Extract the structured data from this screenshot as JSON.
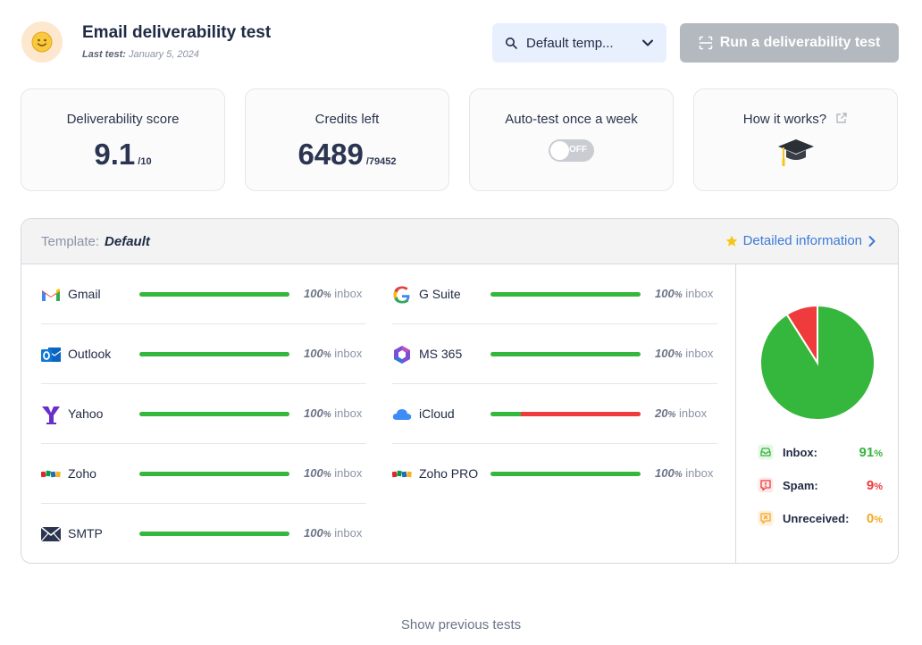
{
  "header": {
    "title": "Email deliverability test",
    "last_test_label": "Last test:",
    "last_test_date": "January 5, 2024",
    "template_select": "Default temp...",
    "run_button": "Run a deliverability test"
  },
  "cards": {
    "score": {
      "label": "Deliverability score",
      "value": "9.1",
      "suffix": "/10"
    },
    "credits": {
      "label": "Credits left",
      "value": "6489",
      "suffix": "/79452"
    },
    "autotest": {
      "label": "Auto-test once a week",
      "toggle_text": "OFF",
      "enabled": false
    },
    "how": {
      "label": "How it works?"
    }
  },
  "panel": {
    "template_label": "Template:",
    "template_name": "Default",
    "detail_link": "Detailed information"
  },
  "providers_left": [
    {
      "name": "Gmail",
      "pct": "100",
      "unit": "%",
      "status": "inbox",
      "inbox_fraction": 1.0,
      "icon": "gmail-icon"
    },
    {
      "name": "Outlook",
      "pct": "100",
      "unit": "%",
      "status": "inbox",
      "inbox_fraction": 1.0,
      "icon": "outlook-icon"
    },
    {
      "name": "Yahoo",
      "pct": "100",
      "unit": "%",
      "status": "inbox",
      "inbox_fraction": 1.0,
      "icon": "yahoo-icon"
    },
    {
      "name": "Zoho",
      "pct": "100",
      "unit": "%",
      "status": "inbox",
      "inbox_fraction": 1.0,
      "icon": "zoho-icon"
    },
    {
      "name": "SMTP",
      "pct": "100",
      "unit": "%",
      "status": "inbox",
      "inbox_fraction": 1.0,
      "icon": "smtp-icon"
    }
  ],
  "providers_right": [
    {
      "name": "G Suite",
      "pct": "100",
      "unit": "%",
      "status": "inbox",
      "inbox_fraction": 1.0,
      "icon": "gsuite-icon"
    },
    {
      "name": "MS 365",
      "pct": "100",
      "unit": "%",
      "status": "inbox",
      "inbox_fraction": 1.0,
      "icon": "ms365-icon"
    },
    {
      "name": "iCloud",
      "pct": "20",
      "unit": "%",
      "status": "inbox",
      "inbox_fraction": 0.2,
      "icon": "icloud-icon"
    },
    {
      "name": "Zoho PRO",
      "pct": "100",
      "unit": "%",
      "status": "inbox",
      "inbox_fraction": 1.0,
      "icon": "zoho-pro-icon"
    }
  ],
  "summary": {
    "inbox": {
      "label": "Inbox:",
      "value": "91",
      "unit": "%"
    },
    "spam": {
      "label": "Spam:",
      "value": "9",
      "unit": "%"
    },
    "unreceived": {
      "label": "Unreceived:",
      "value": "0",
      "unit": "%"
    }
  },
  "chart_data": {
    "type": "pie",
    "categories": [
      "Inbox",
      "Spam",
      "Unreceived"
    ],
    "values": [
      91,
      9,
      0
    ]
  },
  "colors": {
    "inbox": "#35b63c",
    "spam": "#ef3b3b",
    "unreceived": "#f5a623",
    "link": "#3b7bd8"
  },
  "footer": {
    "show_previous": "Show previous tests"
  }
}
